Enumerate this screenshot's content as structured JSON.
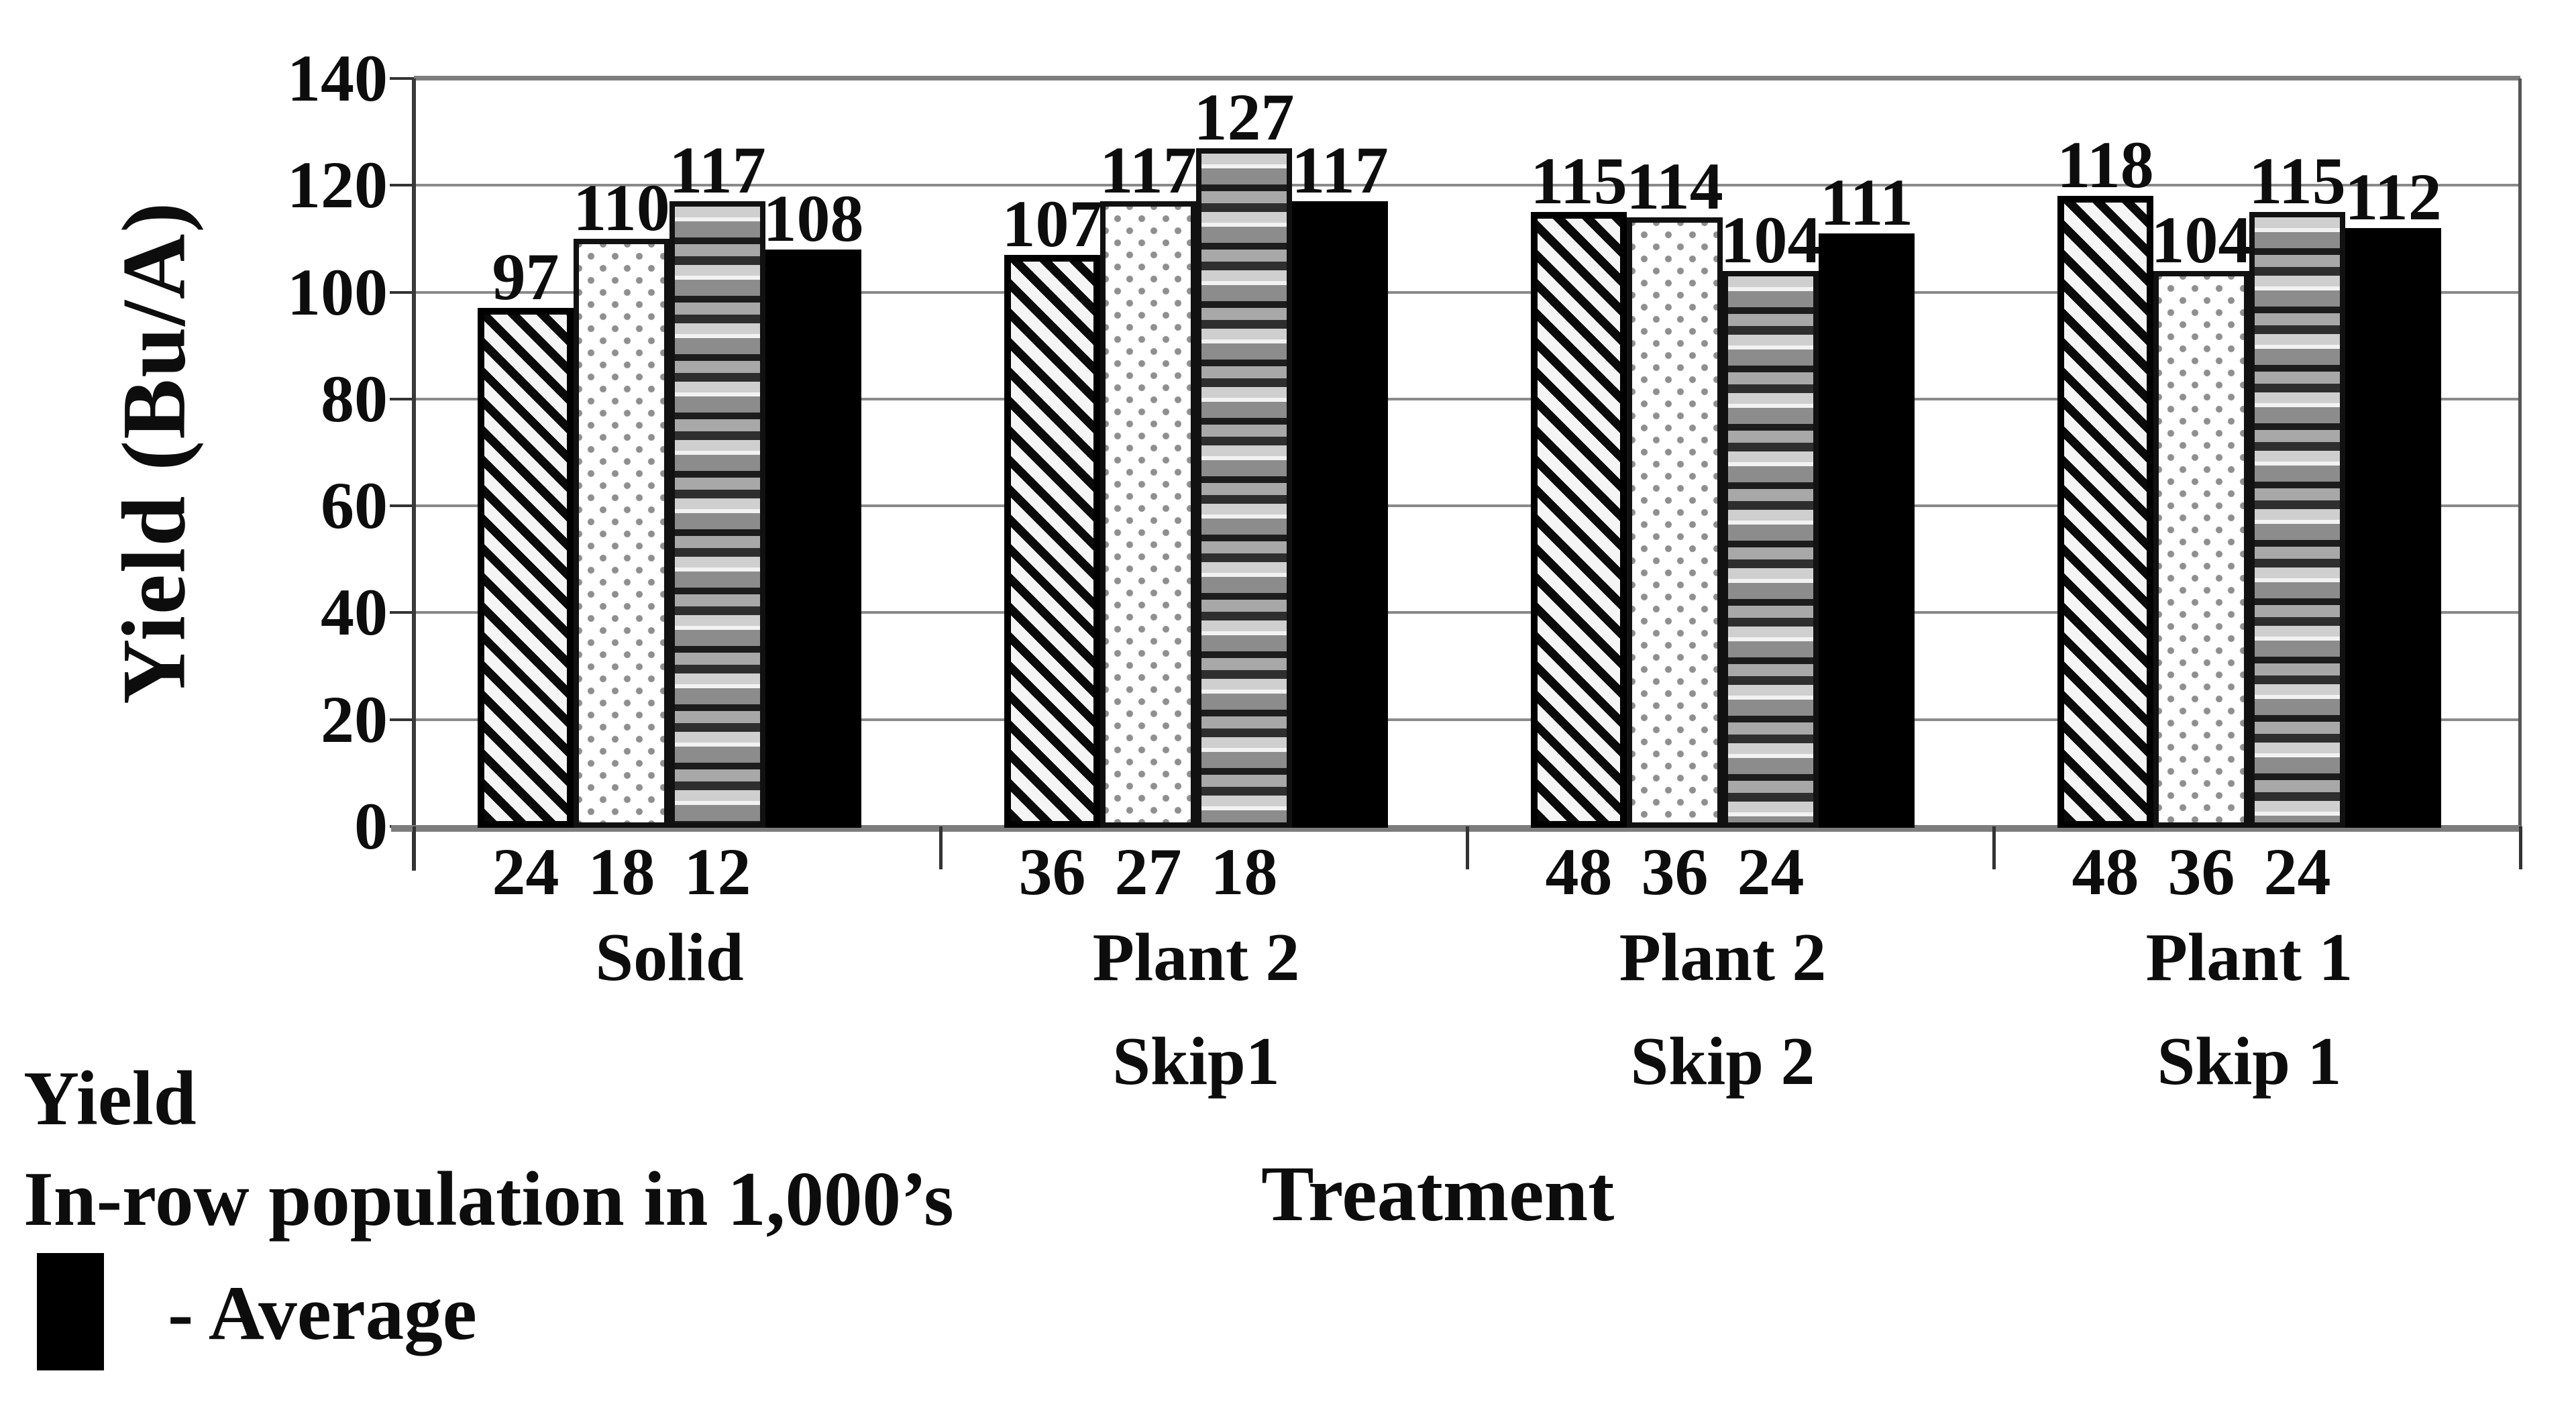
{
  "chart_data": {
    "type": "bar",
    "title": "",
    "ylabel": "Yield (Bu/A)",
    "xlabel": "Treatment",
    "ylim": [
      0,
      140
    ],
    "yticks": [
      0,
      20,
      40,
      60,
      80,
      100,
      120,
      140
    ],
    "grid": true,
    "legend_position": "bottom-left",
    "series_patterns": [
      "diagonal-hatch",
      "dot-stipple",
      "horizontal-stripes",
      "solid-black"
    ],
    "groups": [
      {
        "treatment_lines": [
          "Solid"
        ],
        "populations": [
          "24",
          "18",
          "12"
        ],
        "values": [
          97,
          110,
          117
        ],
        "average": 108
      },
      {
        "treatment_lines": [
          "Plant 2",
          "Skip1"
        ],
        "populations": [
          "36",
          "27",
          "18"
        ],
        "values": [
          107,
          117,
          127
        ],
        "average": 117
      },
      {
        "treatment_lines": [
          "Plant 2",
          "Skip 2"
        ],
        "populations": [
          "48",
          "36",
          "24"
        ],
        "values": [
          115,
          114,
          104
        ],
        "average": 111
      },
      {
        "treatment_lines": [
          "Plant 1",
          "Skip 1"
        ],
        "populations": [
          "48",
          "36",
          "24"
        ],
        "values": [
          118,
          104,
          115
        ],
        "average": 112
      }
    ]
  },
  "legend": {
    "line1": "Yield",
    "line2": "In-row population in 1,000’s",
    "average_label": "- Average",
    "swatch_color": "#000000"
  },
  "colors": {
    "background": "#ffffff",
    "gridline": "#8a8a8a",
    "axis": "#3a3a3a",
    "baseline": "#7d7d7d",
    "bar_black": "#000000",
    "text": "#0d0d0d"
  }
}
